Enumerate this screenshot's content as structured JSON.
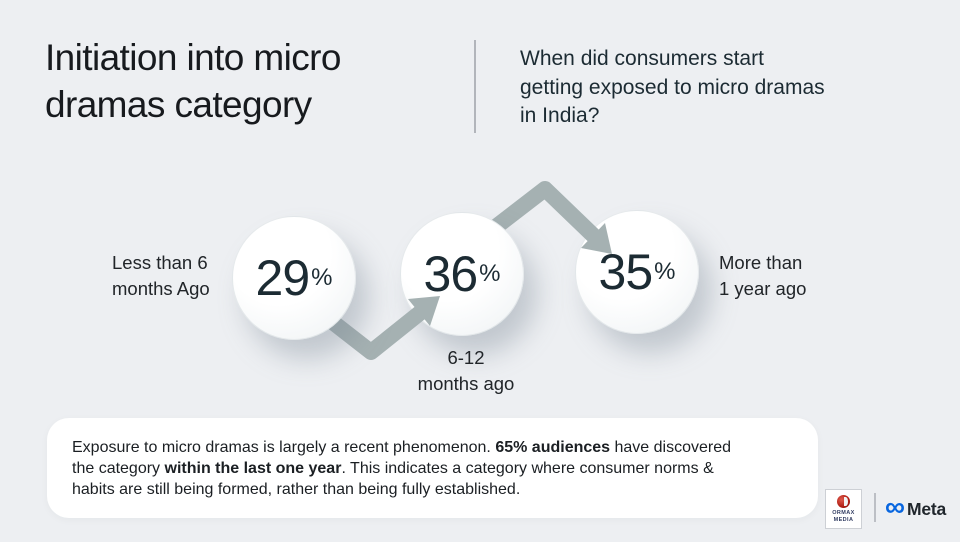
{
  "header": {
    "title": "Initiation into micro dramas category",
    "question": "When did consumers start getting exposed to micro dramas in India?"
  },
  "chart_data": {
    "type": "pictorial",
    "title": "Initiation into micro dramas category",
    "subtitle": "When did consumers start getting exposed to micro dramas in India?",
    "categories": [
      "Less than 6 months Ago",
      "6-12 months ago",
      "More than 1 year ago"
    ],
    "values": [
      29,
      36,
      35
    ],
    "unit": "%",
    "annotation": "65% audiences have discovered the category within the last one year"
  },
  "bubbles": [
    {
      "value": "29",
      "unit": "%",
      "label_line1": "Less than 6",
      "label_line2": "months Ago"
    },
    {
      "value": "36",
      "unit": "%",
      "label_line1": "6-12",
      "label_line2": "months ago"
    },
    {
      "value": "35",
      "unit": "%",
      "label_line1": "More than",
      "label_line2": "1 year ago"
    }
  ],
  "insight": {
    "segments": [
      {
        "text": "Exposure to micro dramas is largely a recent phenomenon. ",
        "bold": false
      },
      {
        "text": "65% audiences",
        "bold": true
      },
      {
        "text": " have discovered the category ",
        "bold": false
      },
      {
        "text": "within the last one year",
        "bold": true
      },
      {
        "text": ". This indicates a category where consumer norms & habits are still being formed, rather than being fully established.",
        "bold": false
      }
    ]
  },
  "footer": {
    "ormax": {
      "line1": "ORMAX",
      "line2": "MEDIA"
    },
    "meta": {
      "infinity": "∞",
      "label": "Meta"
    }
  },
  "colors": {
    "background": "#edeff2",
    "text_dark": "#1c2b33",
    "arrow": "#a5b1b2",
    "meta_blue": "#0866e0",
    "card_bg": "#ffffff"
  }
}
